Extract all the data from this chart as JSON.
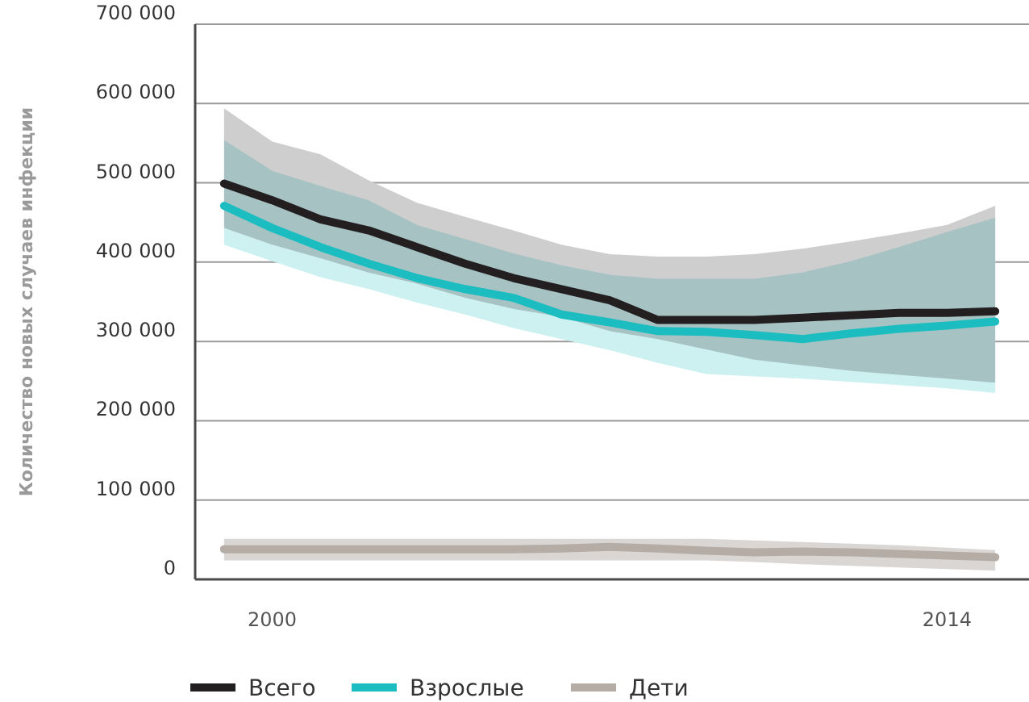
{
  "chart_data": {
    "type": "line",
    "ylabel": "Количество новых случаев инфекции",
    "x": [
      1999,
      2000,
      2001,
      2002,
      2003,
      2004,
      2005,
      2006,
      2007,
      2008,
      2009,
      2010,
      2011,
      2012,
      2013,
      2014,
      2015
    ],
    "series": [
      {
        "name": "Всего",
        "color": "#231f20",
        "values": [
          499000,
          478000,
          454000,
          440000,
          419000,
          398000,
          380000,
          366000,
          352000,
          327000,
          327000,
          327000,
          330000,
          333000,
          336000,
          336000,
          338000
        ],
        "upper": [
          594000,
          552000,
          536000,
          503000,
          475000,
          457000,
          440000,
          422000,
          410000,
          407000,
          407000,
          410000,
          417000,
          426000,
          436000,
          447000,
          471000
        ],
        "lower": [
          443000,
          422000,
          405000,
          387000,
          373000,
          355000,
          341000,
          331000,
          313000,
          303000,
          290000,
          277000,
          270000,
          263000,
          258000,
          253000,
          248000
        ]
      },
      {
        "name": "Взрослые",
        "color": "#1bbdc1",
        "values": [
          471000,
          443000,
          419000,
          398000,
          380000,
          366000,
          355000,
          334000,
          324000,
          313000,
          312000,
          308000,
          303000,
          310000,
          316000,
          320000,
          325000
        ],
        "upper": [
          554000,
          515000,
          496000,
          478000,
          447000,
          429000,
          411000,
          396000,
          384000,
          379000,
          379000,
          379000,
          387000,
          401000,
          419000,
          438000,
          456000
        ],
        "lower": [
          422000,
          401000,
          381000,
          366000,
          349000,
          334000,
          317000,
          303000,
          289000,
          273000,
          259000,
          256000,
          253000,
          249000,
          245000,
          241000,
          235000
        ]
      },
      {
        "name": "Дети",
        "color": "#b5aca6",
        "values": [
          38000,
          38000,
          38000,
          38000,
          38000,
          38000,
          38000,
          39000,
          41000,
          39000,
          36000,
          34000,
          35000,
          34000,
          32000,
          30000,
          28000
        ],
        "upper": [
          51000,
          51000,
          51000,
          51000,
          51000,
          51000,
          51000,
          51000,
          51000,
          51000,
          51000,
          49000,
          47000,
          45000,
          43000,
          40000,
          37000
        ],
        "lower": [
          24000,
          24000,
          24000,
          24000,
          24000,
          24000,
          24000,
          24000,
          24000,
          24000,
          24000,
          22000,
          19000,
          17000,
          15000,
          13000,
          11000
        ]
      }
    ],
    "xlim": [
      1998.4,
      2015.7
    ],
    "xticks": [
      2000,
      2014
    ],
    "ylim": [
      0,
      700000
    ],
    "yticks": [
      0,
      {
        "value": 100000,
        "label": "100 000"
      },
      {
        "value": 200000,
        "label": "200 000"
      },
      {
        "value": 300000,
        "label": "300 000"
      },
      {
        "value": 400000,
        "label": "400 000"
      },
      {
        "value": 500000,
        "label": "500 000"
      },
      {
        "value": 600000,
        "label": "600 000"
      },
      {
        "value": 700000,
        "label": "700 000"
      }
    ],
    "grid": "y",
    "legend": "bottom",
    "marker": "none",
    "line_style": "solid"
  }
}
